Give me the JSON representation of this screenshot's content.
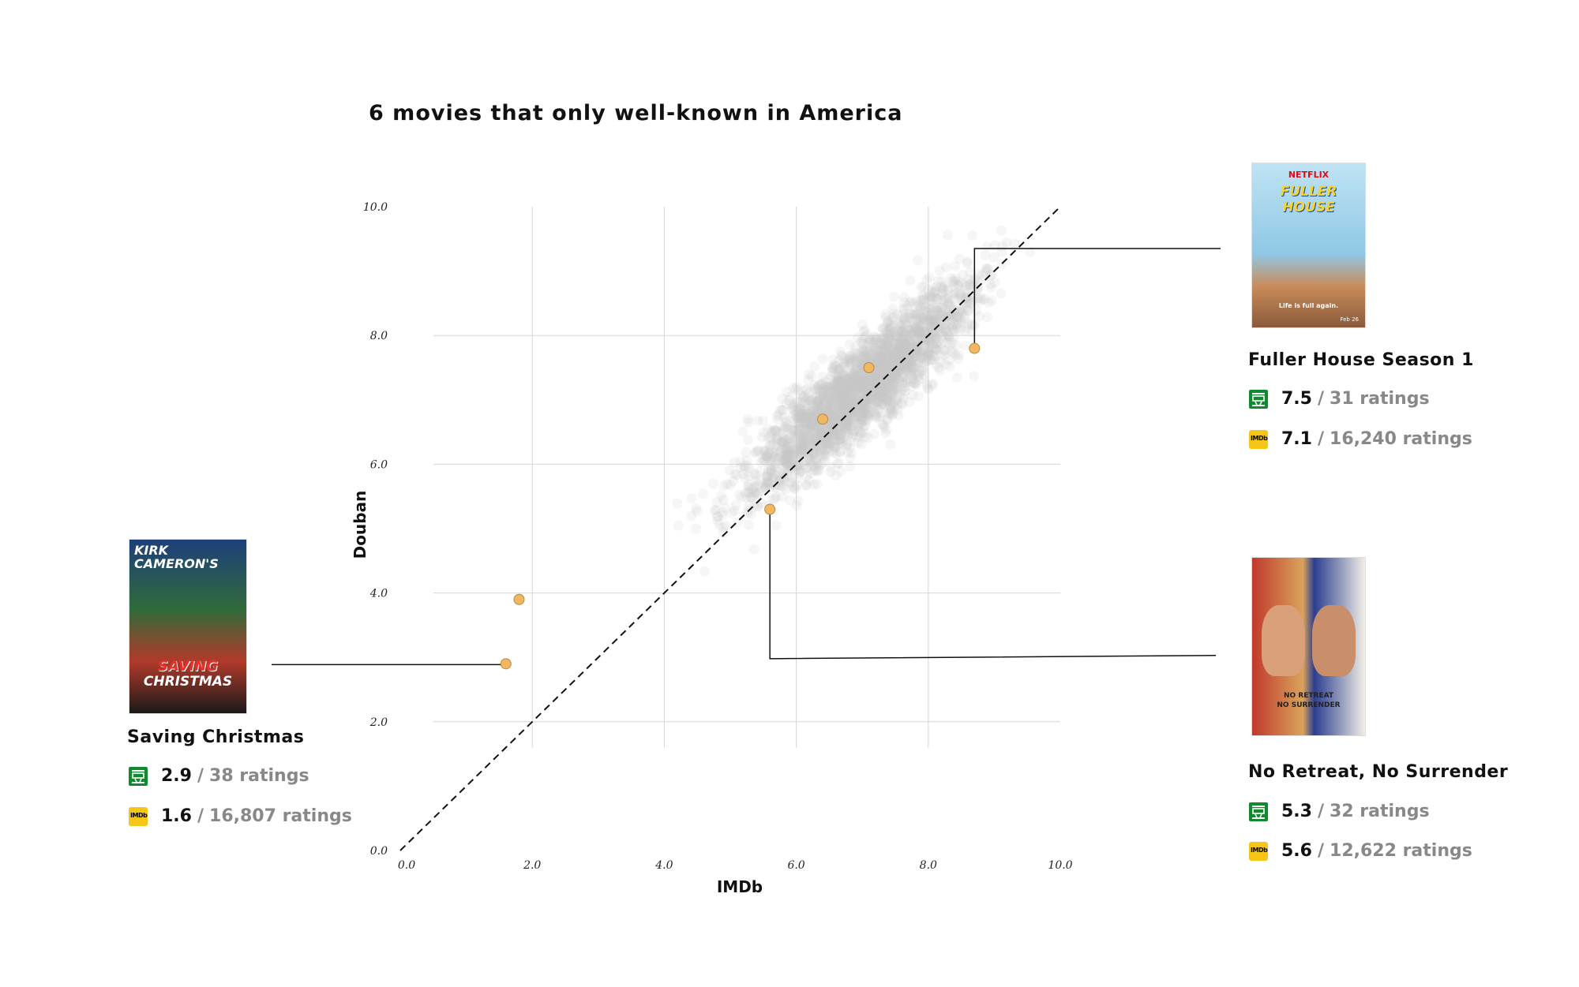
{
  "chart_data": {
    "type": "scatter",
    "title": "6 movies that only well-known in America",
    "xlabel": "IMDb",
    "ylabel": "Douban",
    "xlim": [
      0,
      10
    ],
    "ylim": [
      0,
      10
    ],
    "x_ticks": [
      "0.0",
      "2.0",
      "4.0",
      "6.0",
      "8.0",
      "10.0"
    ],
    "y_ticks": [
      "0.0",
      "2.0",
      "4.0",
      "6.0",
      "8.0",
      "10.0"
    ],
    "grid": true,
    "reference_line": "y = x (dashed)",
    "background_series": {
      "name": "",
      "color": "#cccccc",
      "description_free": true
    },
    "highlighted_points": [
      {
        "x": 1.6,
        "y": 2.9
      },
      {
        "x": 1.8,
        "y": 3.9
      },
      {
        "x": 5.6,
        "y": 5.3
      },
      {
        "x": 6.4,
        "y": 6.7
      },
      {
        "x": 7.1,
        "y": 7.5
      },
      {
        "x": 8.7,
        "y": 7.8
      }
    ],
    "highlight_color": "#f0b862"
  },
  "callouts": [
    {
      "title": "Fuller House Season 1",
      "douban_score": "7.5",
      "douban_count": "31 ratings",
      "imdb_score": "7.1",
      "imdb_count": "16,240 ratings",
      "poster_text": [
        "NETFLIX",
        "FULLER",
        "HOUSE",
        "Life is full again.",
        "Feb 26"
      ]
    },
    {
      "title": "No Retreat, No Surrender",
      "douban_score": "5.3",
      "douban_count": "32 ratings",
      "imdb_score": "5.6",
      "imdb_count": "12,622 ratings",
      "poster_text": [
        "NO RETREAT",
        "NO SURRENDER"
      ]
    },
    {
      "title": "Saving Christmas",
      "douban_score": "2.9",
      "douban_count": "38 ratings",
      "imdb_score": "1.6",
      "imdb_count": "16,807 ratings",
      "poster_text": [
        "KIRK",
        "CAMERON'S",
        "SAVING",
        "CHRISTMAS"
      ]
    }
  ],
  "separator": "/",
  "imdb_icon_text": "IMDb",
  "colors": {
    "douban": "#0f8a2f",
    "imdb": "#f5c518",
    "muted": "#888888"
  }
}
